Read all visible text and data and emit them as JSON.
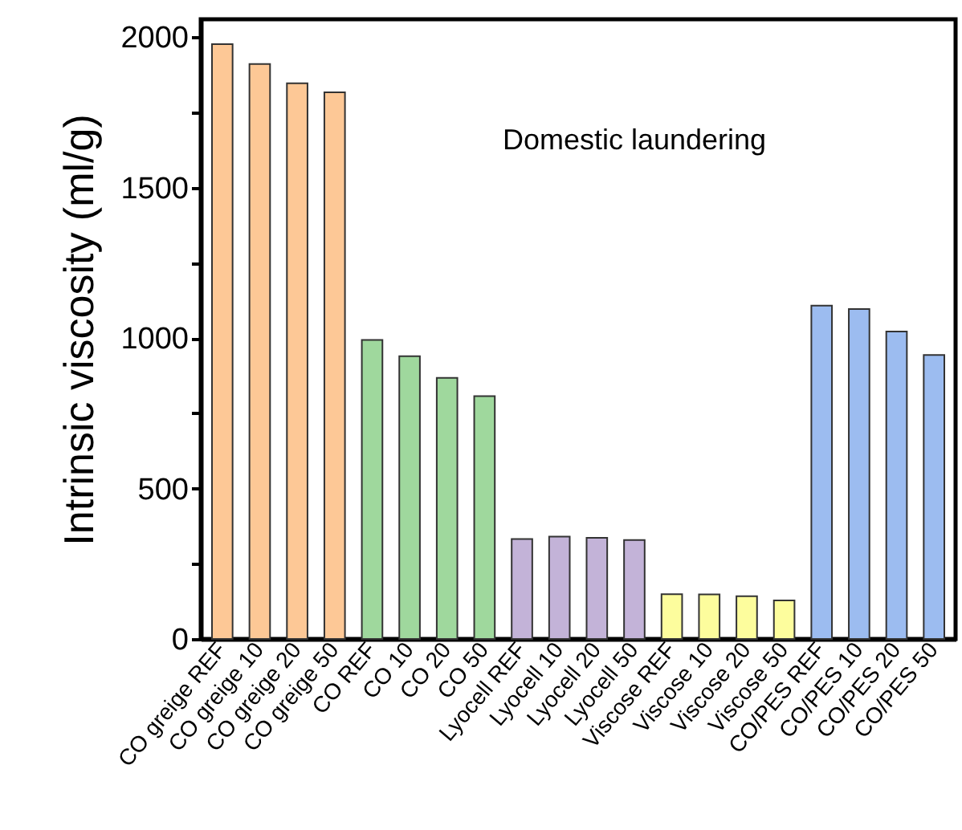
{
  "chart_data": {
    "type": "bar",
    "ylabel": "Intrinsic viscosity (ml/g)",
    "annotations": [
      "Domestic laundering"
    ],
    "categories": [
      "CO greige REF",
      "CO greige 10",
      "CO greige 20",
      "CO greige 50",
      "CO REF",
      "CO 10",
      "CO 20",
      "CO 50",
      "Lyocell REF",
      "Lyocell 10",
      "Lyocell 20",
      "Lyocell 50",
      "Viscose REF",
      "Viscose 10",
      "Viscose 20",
      "Viscose 50",
      "CO/PES REF",
      "CO/PES 10",
      "CO/PES 20",
      "CO/PES 50"
    ],
    "values": [
      1977,
      1911,
      1847,
      1817,
      994,
      940,
      868,
      807,
      332,
      340,
      336,
      329,
      149,
      148,
      142,
      128,
      1108,
      1097,
      1022,
      944
    ],
    "colors": [
      "#fdc896",
      "#fdc896",
      "#fdc896",
      "#fdc896",
      "#9fd89d",
      "#9fd89d",
      "#9fd89d",
      "#9fd89d",
      "#c3b3d8",
      "#c3b3d8",
      "#c3b3d8",
      "#c3b3d8",
      "#fdfd9d",
      "#fdfd9d",
      "#fdfd9d",
      "#fdfd9d",
      "#9cbcf0",
      "#9cbcf0",
      "#9cbcf0",
      "#9cbcf0"
    ],
    "ylim": [
      0,
      2060
    ],
    "yticks": [
      0,
      {
        "value": 250,
        "label": null
      },
      500,
      {
        "value": 750,
        "label": null
      },
      1000,
      {
        "value": 1250,
        "label": null
      },
      1500,
      {
        "value": 1750,
        "label": null
      },
      2000
    ],
    "grid": false
  }
}
